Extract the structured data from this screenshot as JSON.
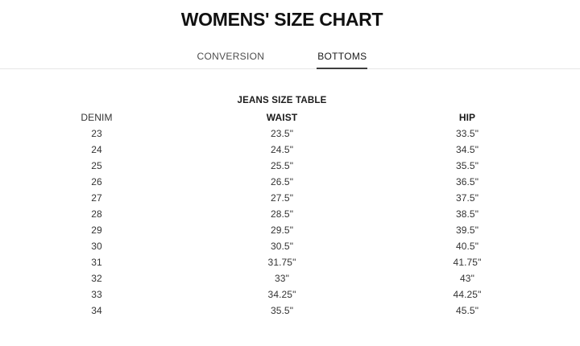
{
  "header": {
    "title": "WOMENS' SIZE CHART"
  },
  "tabs": [
    {
      "label": "CONVERSION",
      "active": false
    },
    {
      "label": "BOTTOMS",
      "active": true
    }
  ],
  "table": {
    "title": "JEANS SIZE TABLE",
    "columns": [
      "DENIM",
      "WAIST",
      "HIP"
    ],
    "rows": [
      [
        "23",
        "23.5\"",
        "33.5\""
      ],
      [
        "24",
        "24.5\"",
        "34.5\""
      ],
      [
        "25",
        "25.5\"",
        "35.5\""
      ],
      [
        "26",
        "26.5\"",
        "36.5\""
      ],
      [
        "27",
        "27.5\"",
        "37.5\""
      ],
      [
        "28",
        "28.5\"",
        "38.5\""
      ],
      [
        "29",
        "29.5\"",
        "39.5\""
      ],
      [
        "30",
        "30.5\"",
        "40.5\""
      ],
      [
        "31",
        "31.75\"",
        "41.75\""
      ],
      [
        "32",
        "33\"",
        "43\""
      ],
      [
        "33",
        "34.25\"",
        "44.25\""
      ],
      [
        "34",
        "35.5\"",
        "45.5\""
      ]
    ]
  },
  "colors": {
    "text_primary": "#1a1a1a",
    "text_secondary": "#4d4d4d",
    "divider": "#e7e7e7",
    "active_tab_underline": "#3d3d3d"
  }
}
